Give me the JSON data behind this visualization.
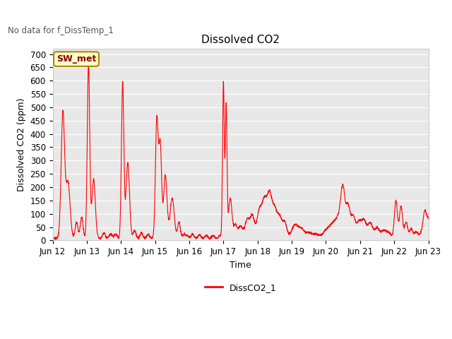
{
  "title": "Dissolved CO2",
  "top_left_text": "No data for f_DissTemp_1",
  "xlabel": "Time",
  "ylabel": "Dissolved CO2 (ppm)",
  "ylim": [
    0,
    720
  ],
  "yticks": [
    0,
    50,
    100,
    150,
    200,
    250,
    300,
    350,
    400,
    450,
    500,
    550,
    600,
    650,
    700
  ],
  "legend_label": "DissCO2_1",
  "legend_box_label": "SW_met",
  "line_color": "red",
  "plot_bg_color": "#e8e8e8",
  "figsize": [
    6.4,
    4.8
  ],
  "dpi": 100,
  "xtick_labels": [
    "Jun 12",
    "Jun 13",
    "Jun 14",
    "Jun 15",
    "Jun 16",
    "Jun 17",
    "Jun 18",
    "Jun 19",
    "Jun 20",
    "Jun 21",
    "Jun 22",
    "Jun 23"
  ]
}
